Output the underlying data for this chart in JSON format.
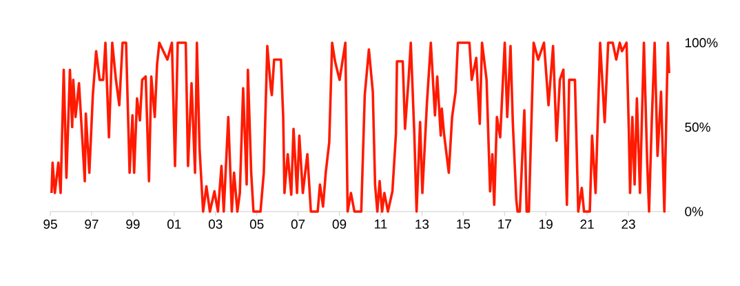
{
  "chart_data": {
    "type": "line",
    "color": "#ff1a00",
    "x": [
      1995.06,
      1995.11,
      1995.22,
      1995.39,
      1995.5,
      1995.65,
      1995.78,
      1995.95,
      1996.06,
      1996.11,
      1996.22,
      1996.39,
      1996.67,
      1996.72,
      1996.89,
      1997.06,
      1997.22,
      1997.39,
      1997.56,
      1997.67,
      1997.84,
      1998.0,
      1998.17,
      1998.34,
      1998.5,
      1998.67,
      1998.84,
      1998.98,
      1999.06,
      1999.2,
      1999.34,
      1999.45,
      1999.62,
      1999.78,
      1999.89,
      2000.06,
      2000.17,
      2000.28,
      2000.67,
      2000.89,
      2001.04,
      2001.17,
      2001.56,
      2001.67,
      2001.84,
      2002.01,
      2002.1,
      2002.23,
      2002.4,
      2002.56,
      2002.73,
      2002.95,
      2003.12,
      2003.29,
      2003.4,
      2003.62,
      2003.79,
      2003.9,
      2004.06,
      2004.18,
      2004.34,
      2004.51,
      2004.57,
      2004.73,
      2004.84,
      2005.18,
      2005.34,
      2005.51,
      2005.68,
      2005.73,
      2005.84,
      2006.17,
      2006.28,
      2006.34,
      2006.5,
      2006.67,
      2006.78,
      2006.95,
      2007.06,
      2007.23,
      2007.45,
      2007.62,
      2007.95,
      2008.06,
      2008.21,
      2008.34,
      2008.51,
      2008.65,
      2008.79,
      2009.01,
      2009.29,
      2009.4,
      2009.56,
      2009.73,
      2010.06,
      2010.23,
      2010.43,
      2010.62,
      2010.73,
      2010.84,
      2010.95,
      2011.07,
      2011.18,
      2011.35,
      2011.57,
      2011.74,
      2011.79,
      2012.07,
      2012.18,
      2012.35,
      2012.46,
      2012.63,
      2012.74,
      2012.91,
      2013.02,
      2013.24,
      2013.43,
      2013.63,
      2013.74,
      2013.91,
      2013.96,
      2014.07,
      2014.3,
      2014.46,
      2014.63,
      2014.74,
      2015.3,
      2015.41,
      2015.63,
      2015.8,
      2015.91,
      2016.13,
      2016.3,
      2016.41,
      2016.5,
      2016.63,
      2016.79,
      2017.01,
      2017.13,
      2017.29,
      2017.4,
      2017.57,
      2017.63,
      2017.74,
      2017.96,
      2018.07,
      2018.18,
      2018.41,
      2018.63,
      2018.91,
      2019.13,
      2019.35,
      2019.52,
      2019.68,
      2019.85,
      2020.02,
      2020.13,
      2020.41,
      2020.57,
      2020.74,
      2020.85,
      2021.13,
      2021.24,
      2021.41,
      2021.63,
      2021.85,
      2022.02,
      2022.24,
      2022.41,
      2022.58,
      2022.69,
      2022.91,
      2023.02,
      2023.08,
      2023.19,
      2023.3,
      2023.41,
      2023.56,
      2023.75,
      2023.91,
      2024.0,
      2024.13,
      2024.27,
      2024.41,
      2024.58,
      2024.74,
      2024.91,
      2024.97
    ],
    "values": [
      11,
      29,
      11,
      29,
      11,
      84,
      20,
      84,
      50,
      78,
      56,
      76,
      18,
      58,
      23,
      69,
      95,
      78,
      78,
      100,
      44,
      100,
      79,
      63,
      100,
      100,
      23,
      57,
      23,
      67,
      54,
      78,
      80,
      18,
      80,
      56,
      87,
      100,
      90,
      100,
      27,
      100,
      100,
      27,
      76,
      23,
      100,
      37,
      0,
      15,
      0,
      12,
      0,
      27,
      0,
      56,
      0,
      23,
      0,
      11,
      73,
      16,
      84,
      23,
      0,
      0,
      23,
      98,
      73,
      69,
      90,
      90,
      56,
      11,
      34,
      10,
      49,
      11,
      45,
      11,
      34,
      0,
      0,
      16,
      3,
      23,
      41,
      100,
      89,
      78,
      100,
      0,
      11,
      0,
      0,
      69,
      96,
      71,
      16,
      0,
      18,
      0,
      11,
      0,
      12,
      46,
      89,
      89,
      49,
      78,
      100,
      46,
      0,
      53,
      11,
      64,
      100,
      57,
      80,
      45,
      61,
      46,
      23,
      56,
      71,
      100,
      100,
      78,
      91,
      52,
      100,
      78,
      12,
      34,
      4,
      56,
      44,
      100,
      56,
      98,
      53,
      7,
      0,
      0,
      60,
      0,
      0,
      100,
      90,
      100,
      63,
      98,
      42,
      78,
      84,
      4,
      78,
      78,
      0,
      14,
      0,
      0,
      45,
      11,
      100,
      53,
      100,
      100,
      90,
      100,
      95,
      100,
      48,
      11,
      56,
      16,
      67,
      11,
      100,
      29,
      0,
      53,
      100,
      33,
      71,
      0,
      100,
      82
    ],
    "xlim": [
      1995,
      2025
    ],
    "ylim": [
      0,
      100
    ],
    "xticks": [
      {
        "value": 1995,
        "label": "95"
      },
      {
        "value": 1997,
        "label": "97"
      },
      {
        "value": 1999,
        "label": "99"
      },
      {
        "value": 2001,
        "label": "01"
      },
      {
        "value": 2003,
        "label": "03"
      },
      {
        "value": 2005,
        "label": "05"
      },
      {
        "value": 2007,
        "label": "07"
      },
      {
        "value": 2009,
        "label": "09"
      },
      {
        "value": 2011,
        "label": "11"
      },
      {
        "value": 2013,
        "label": "13"
      },
      {
        "value": 2015,
        "label": "15"
      },
      {
        "value": 2017,
        "label": "17"
      },
      {
        "value": 2019,
        "label": "19"
      },
      {
        "value": 2021,
        "label": "21"
      },
      {
        "value": 2023,
        "label": "23"
      }
    ],
    "yticks": [
      {
        "value": 0,
        "label": "0%"
      },
      {
        "value": 50,
        "label": "50%"
      },
      {
        "value": 100,
        "label": "100%"
      }
    ]
  }
}
